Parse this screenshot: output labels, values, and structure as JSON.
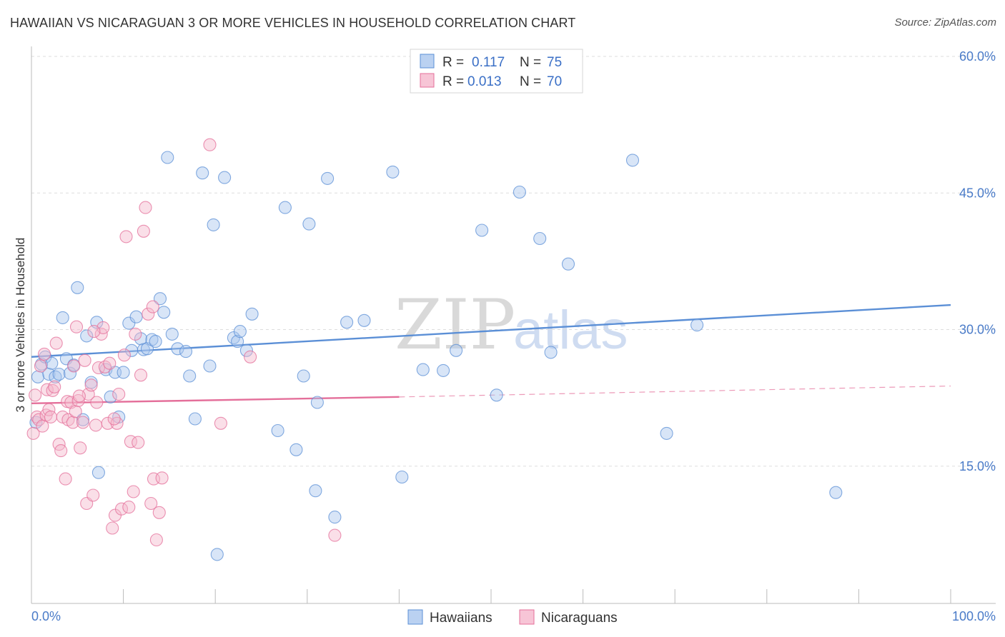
{
  "title": "HAWAIIAN VS NICARAGUAN 3 OR MORE VEHICLES IN HOUSEHOLD CORRELATION CHART",
  "source": "Source: ZipAtlas.com",
  "colors": {
    "blue": "#5b8fd6",
    "blue_fill": "#a9c6ee",
    "pink": "#e46f9a",
    "pink_fill": "#f5b7cc",
    "value_text": "#3a6fc6"
  },
  "legend": {
    "rows": [
      {
        "r_label": "R =",
        "r_value": "0.117",
        "n_label": "N =",
        "n_value": "75"
      },
      {
        "r_label": "R =",
        "r_value": "0.013",
        "n_label": "N =",
        "n_value": "70"
      }
    ]
  },
  "watermark": {
    "zip": "ZIP",
    "atlas": "atlas"
  },
  "bottom_legend": [
    "Hawaiians",
    "Nicaraguans"
  ],
  "chart_data": {
    "type": "scatter",
    "title": "HAWAIIAN VS NICARAGUAN 3 OR MORE VEHICLES IN HOUSEHOLD CORRELATION CHART",
    "xlabel": "",
    "ylabel": "3 or more Vehicles in Household",
    "xlim": [
      0,
      100
    ],
    "ylim": [
      0,
      61.5
    ],
    "x_tick_labels": [
      "0.0%",
      "100.0%"
    ],
    "y_ticks": [
      15,
      30,
      45,
      60
    ],
    "y_tick_labels": [
      "15.0%",
      "30.0%",
      "45.0%",
      "60.0%"
    ],
    "grid": true,
    "legend_placement": "top-center",
    "series": [
      {
        "name": "Hawaiians",
        "color": "#5b8fd6",
        "trend": {
          "x": [
            0,
            100
          ],
          "y": [
            27.0,
            32.7
          ],
          "style": "solid"
        },
        "points": [
          [
            0.5,
            19.8
          ],
          [
            0.7,
            24.8
          ],
          [
            1.1,
            26.2
          ],
          [
            1.5,
            27.0
          ],
          [
            1.9,
            25.1
          ],
          [
            2.2,
            26.3
          ],
          [
            2.6,
            24.8
          ],
          [
            3.0,
            25.1
          ],
          [
            3.4,
            31.3
          ],
          [
            3.8,
            26.8
          ],
          [
            4.2,
            25.2
          ],
          [
            4.6,
            26.1
          ],
          [
            5.0,
            34.6
          ],
          [
            5.6,
            20.1
          ],
          [
            6.0,
            29.3
          ],
          [
            6.5,
            24.2
          ],
          [
            7.1,
            30.8
          ],
          [
            7.3,
            14.3
          ],
          [
            8.1,
            25.6
          ],
          [
            8.6,
            22.6
          ],
          [
            9.1,
            25.3
          ],
          [
            9.5,
            20.4
          ],
          [
            10.0,
            25.3
          ],
          [
            10.6,
            30.7
          ],
          [
            10.9,
            27.7
          ],
          [
            11.4,
            31.4
          ],
          [
            11.9,
            29.0
          ],
          [
            12.2,
            27.8
          ],
          [
            12.6,
            27.9
          ],
          [
            13.1,
            28.9
          ],
          [
            13.5,
            28.7
          ],
          [
            14.0,
            33.4
          ],
          [
            14.4,
            31.9
          ],
          [
            14.8,
            48.9
          ],
          [
            15.3,
            29.5
          ],
          [
            15.9,
            27.9
          ],
          [
            16.8,
            27.6
          ],
          [
            17.2,
            24.9
          ],
          [
            17.8,
            20.2
          ],
          [
            18.6,
            47.2
          ],
          [
            19.4,
            26.0
          ],
          [
            19.8,
            41.5
          ],
          [
            20.2,
            5.3
          ],
          [
            21.0,
            46.7
          ],
          [
            22.0,
            29.1
          ],
          [
            22.4,
            28.7
          ],
          [
            22.7,
            29.8
          ],
          [
            23.4,
            27.7
          ],
          [
            24.0,
            31.7
          ],
          [
            26.8,
            18.9
          ],
          [
            27.6,
            43.4
          ],
          [
            28.8,
            16.8
          ],
          [
            29.6,
            24.9
          ],
          [
            30.2,
            41.6
          ],
          [
            30.9,
            12.3
          ],
          [
            31.1,
            22.0
          ],
          [
            32.2,
            46.6
          ],
          [
            33.0,
            9.4
          ],
          [
            34.3,
            30.8
          ],
          [
            36.2,
            31.0
          ],
          [
            39.3,
            47.3
          ],
          [
            40.3,
            13.8
          ],
          [
            42.6,
            25.6
          ],
          [
            44.8,
            25.5
          ],
          [
            46.2,
            27.7
          ],
          [
            49.0,
            40.9
          ],
          [
            50.6,
            22.8
          ],
          [
            53.1,
            45.1
          ],
          [
            55.3,
            40.0
          ],
          [
            56.5,
            27.5
          ],
          [
            58.4,
            37.2
          ],
          [
            65.4,
            48.6
          ],
          [
            69.1,
            18.6
          ],
          [
            72.4,
            30.5
          ],
          [
            87.5,
            12.1
          ]
        ]
      },
      {
        "name": "Nicaraguans",
        "color": "#e46f9a",
        "trend": {
          "x": [
            0,
            40
          ],
          "y": [
            21.9,
            22.6
          ],
          "style": "solid",
          "extended_to": [
            100,
            23.8
          ],
          "extended_style": "dashed"
        },
        "points": [
          [
            0.2,
            18.6
          ],
          [
            0.4,
            22.8
          ],
          [
            0.6,
            20.4
          ],
          [
            0.8,
            20.1
          ],
          [
            1.0,
            26.0
          ],
          [
            1.2,
            19.4
          ],
          [
            1.4,
            27.3
          ],
          [
            1.6,
            20.6
          ],
          [
            1.7,
            23.4
          ],
          [
            1.9,
            21.2
          ],
          [
            2.1,
            20.4
          ],
          [
            2.3,
            23.3
          ],
          [
            2.5,
            23.7
          ],
          [
            2.7,
            28.5
          ],
          [
            3.0,
            17.4
          ],
          [
            3.2,
            16.7
          ],
          [
            3.4,
            20.4
          ],
          [
            3.7,
            13.6
          ],
          [
            3.9,
            22.1
          ],
          [
            4.0,
            20.1
          ],
          [
            4.3,
            22.0
          ],
          [
            4.5,
            19.8
          ],
          [
            4.8,
            21.0
          ],
          [
            4.9,
            30.3
          ],
          [
            5.1,
            22.2
          ],
          [
            5.3,
            17.0
          ],
          [
            5.6,
            19.8
          ],
          [
            5.8,
            26.6
          ],
          [
            6.0,
            10.9
          ],
          [
            6.2,
            22.9
          ],
          [
            6.5,
            23.9
          ],
          [
            6.7,
            11.8
          ],
          [
            7.0,
            19.5
          ],
          [
            7.3,
            25.8
          ],
          [
            7.6,
            29.5
          ],
          [
            7.8,
            30.2
          ],
          [
            8.0,
            25.9
          ],
          [
            8.3,
            19.7
          ],
          [
            8.5,
            26.3
          ],
          [
            8.8,
            8.2
          ],
          [
            9.1,
            9.6
          ],
          [
            9.3,
            19.7
          ],
          [
            9.5,
            22.9
          ],
          [
            9.8,
            10.3
          ],
          [
            10.1,
            27.2
          ],
          [
            10.3,
            40.2
          ],
          [
            10.6,
            10.5
          ],
          [
            10.8,
            17.7
          ],
          [
            11.1,
            12.2
          ],
          [
            11.3,
            29.5
          ],
          [
            11.6,
            17.6
          ],
          [
            11.9,
            25.0
          ],
          [
            12.2,
            40.8
          ],
          [
            12.4,
            43.4
          ],
          [
            12.7,
            31.7
          ],
          [
            13.0,
            10.9
          ],
          [
            13.3,
            13.6
          ],
          [
            13.6,
            6.9
          ],
          [
            13.9,
            9.9
          ],
          [
            14.2,
            13.7
          ],
          [
            13.2,
            32.5
          ],
          [
            9.0,
            20.2
          ],
          [
            7.1,
            22.0
          ],
          [
            5.2,
            22.7
          ],
          [
            4.6,
            26.0
          ],
          [
            6.8,
            29.8
          ],
          [
            19.4,
            50.3
          ],
          [
            20.6,
            19.7
          ],
          [
            23.8,
            27.0
          ],
          [
            33.0,
            7.4
          ]
        ]
      }
    ]
  }
}
